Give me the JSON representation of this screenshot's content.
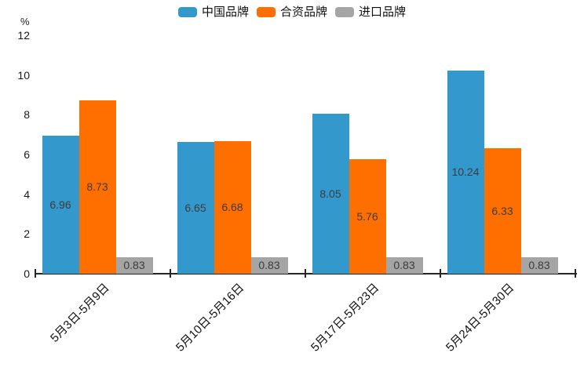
{
  "chart_data": {
    "type": "bar",
    "title": "",
    "unit_label": "%",
    "categories": [
      "5月3日-5月9日",
      "5月10日-5月16日",
      "5月17日-5月23日",
      "5月24日-5月30日"
    ],
    "series": [
      {
        "name": "中国品牌",
        "color": "#3398CC",
        "values": [
          6.96,
          6.65,
          8.05,
          10.24
        ]
      },
      {
        "name": "合资品牌",
        "color": "#FF6F00",
        "values": [
          8.73,
          6.68,
          5.76,
          6.33
        ]
      },
      {
        "name": "进口品牌",
        "color": "#A5A5A5",
        "values": [
          0.83,
          0.83,
          0.83,
          0.83
        ]
      }
    ],
    "value_labels": [
      [
        "6.96",
        "8.73",
        "0.83"
      ],
      [
        "6.65",
        "6.68",
        "0.83"
      ],
      [
        "8.05",
        "5.76",
        "0.83"
      ],
      [
        "10.24",
        "6.33",
        "0.83"
      ]
    ],
    "ylim": [
      0,
      12
    ],
    "yticks": [
      0,
      2,
      4,
      6,
      8,
      10,
      12
    ],
    "legend_position": "top",
    "grid": false,
    "axis_color": "#262626",
    "value_label_color": "#3c3c3c"
  }
}
